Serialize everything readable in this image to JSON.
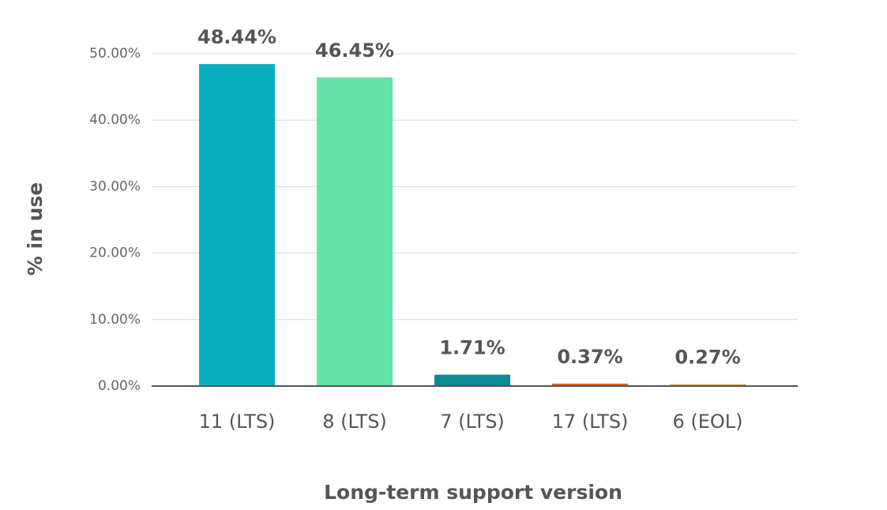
{
  "chart_data": {
    "type": "bar",
    "categories": [
      "11 (LTS)",
      "8 (LTS)",
      "7 (LTS)",
      "17 (LTS)",
      "6 (EOL)"
    ],
    "values": [
      48.44,
      46.45,
      1.71,
      0.37,
      0.27
    ],
    "value_labels": [
      "48.44%",
      "46.45%",
      "1.71%",
      "0.37%",
      "0.27%"
    ],
    "colors": [
      "#0aafbf",
      "#66e3a8",
      "#0b8a94",
      "#e0601e",
      "#d9a441"
    ],
    "x_label": "Long-term support version",
    "y_label": "% in use",
    "ylim": [
      0,
      50
    ],
    "yticks": [
      {
        "value": 0,
        "label": "0.00%"
      },
      {
        "value": 10,
        "label": "10.00%"
      },
      {
        "value": 20,
        "label": "20.00%"
      },
      {
        "value": 30,
        "label": "30.00%"
      },
      {
        "value": 40,
        "label": "40.00%"
      },
      {
        "value": 50,
        "label": "50.00%"
      }
    ],
    "grid": true
  }
}
